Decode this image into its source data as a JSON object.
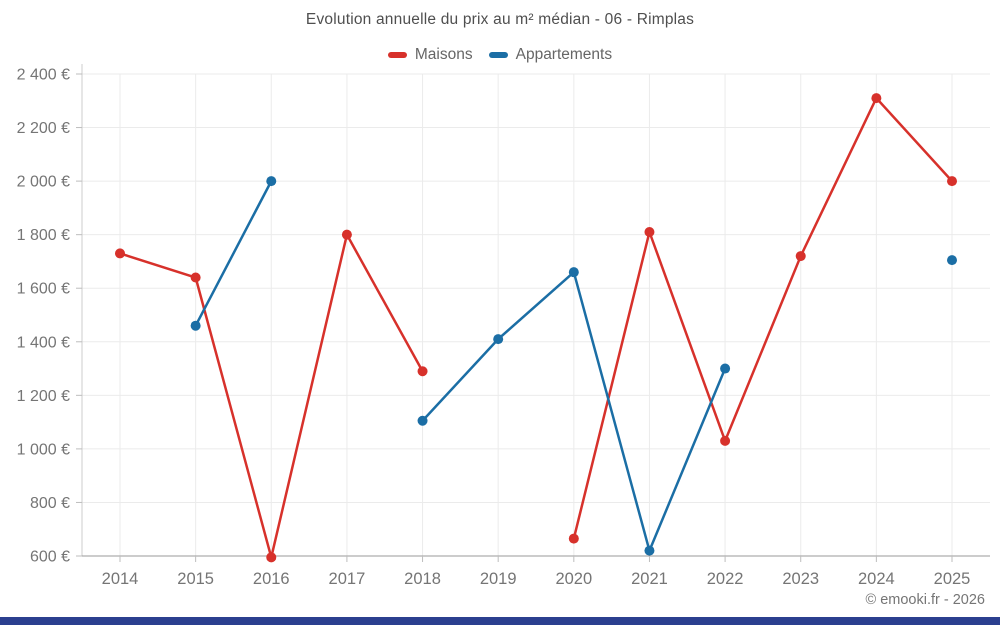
{
  "page": {
    "title": "Evolution annuelle du prix au m² médian - 06 - Rimplas",
    "footer": "© emooki.fr - 2026"
  },
  "legend": {
    "items": [
      {
        "label": "Maisons",
        "color": "#d7312b"
      },
      {
        "label": "Appartements",
        "color": "#1b6ea5"
      }
    ]
  },
  "chart_data": {
    "type": "line",
    "title": "Evolution annuelle du prix au m² médian - 06 - Rimplas",
    "categories": [
      "2014",
      "2015",
      "2016",
      "2017",
      "2018",
      "2019",
      "2020",
      "2021",
      "2022",
      "2023",
      "2024",
      "2025"
    ],
    "series": [
      {
        "name": "Maisons",
        "color": "#d7312b",
        "values": [
          1730,
          1640,
          595,
          1800,
          1290,
          null,
          665,
          1810,
          1030,
          1720,
          2310,
          2000
        ]
      },
      {
        "name": "Appartements",
        "color": "#1b6ea5",
        "values": [
          null,
          1460,
          2000,
          null,
          1105,
          1410,
          1660,
          620,
          1300,
          null,
          null,
          1705
        ]
      }
    ],
    "xlabel": "",
    "ylabel": "",
    "ylim": [
      600,
      2400
    ],
    "ytick_step": 200,
    "ytick_suffix": "€",
    "grid": true,
    "legend_position": "top",
    "missing_data_note": "gaps where no value: Maisons 2019; Appartements 2014, 2017, 2023, 2024 (2025 isolated point)"
  },
  "colors": {
    "grid": "#ebebeb",
    "axis_y_line": "#cccccc",
    "axis_x_line": "#9a9a9a",
    "tick": "#bdbdbd",
    "tick_label": "#757575",
    "title_text": "#4f4f4f",
    "legend_text": "#666666",
    "bottom_bar": "#2b3f8f"
  }
}
